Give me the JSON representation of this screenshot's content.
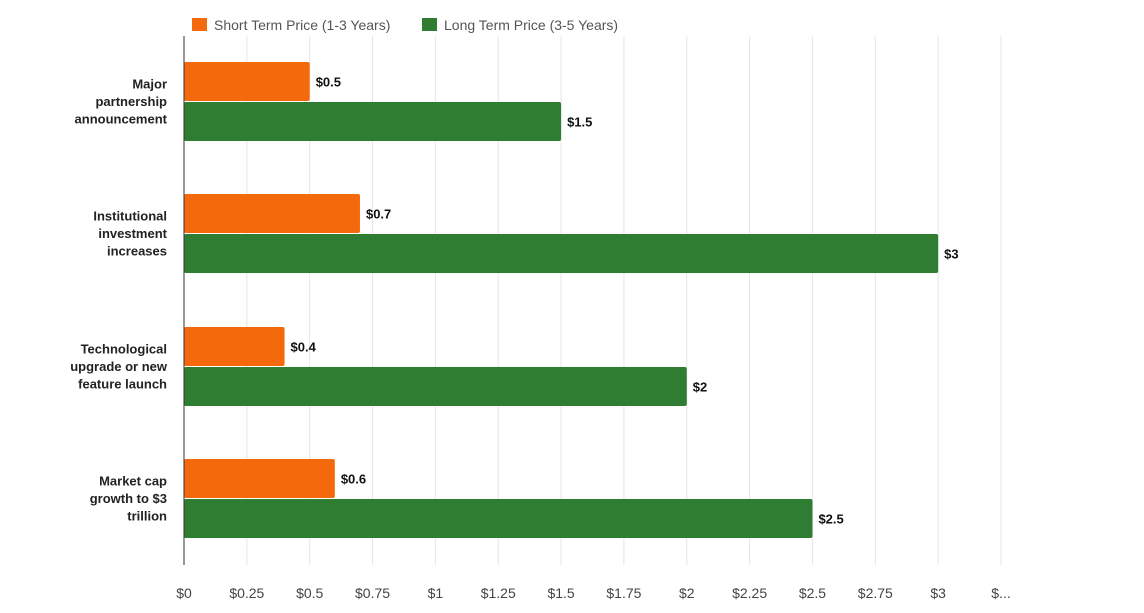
{
  "chart_data": {
    "type": "bar",
    "orientation": "horizontal",
    "title": "",
    "xlabel": "",
    "ylabel": "",
    "categories": [
      "Major partnership announcement",
      "Institutional investment increases",
      "Technological upgrade or new feature launch",
      "Market cap growth to $3 trillion"
    ],
    "category_lines": [
      [
        "Major",
        "partnership",
        "announcement"
      ],
      [
        "Institutional",
        "investment",
        "increases"
      ],
      [
        "Technological",
        "upgrade or new",
        "feature launch"
      ],
      [
        "Market cap",
        "growth to $3",
        "trillion"
      ]
    ],
    "series": [
      {
        "name": "Short Term Price (1-3 Years)",
        "color": "#f4690b",
        "values": [
          0.5,
          0.7,
          0.4,
          0.6
        ],
        "labels": [
          "$0.5",
          "$0.7",
          "$0.4",
          "$0.6"
        ]
      },
      {
        "name": "Long Term Price (3-5 Years)",
        "color": "#2e7d32",
        "values": [
          1.5,
          3,
          2,
          2.5
        ],
        "labels": [
          "$1.5",
          "$3",
          "$2",
          "$2.5"
        ]
      }
    ],
    "xlim": [
      0,
      3.25
    ],
    "xticks": [
      0,
      0.25,
      0.5,
      0.75,
      1,
      1.25,
      1.5,
      1.75,
      2,
      2.25,
      2.5,
      2.75,
      3,
      3.25
    ],
    "xtick_labels": [
      "$0",
      "$0.25",
      "$0.5",
      "$0.75",
      "$1",
      "$1.25",
      "$1.5",
      "$1.75",
      "$2",
      "$2.25",
      "$2.5",
      "$2.75",
      "$3",
      "$..."
    ],
    "grid": true,
    "legend_position": "top-left"
  }
}
